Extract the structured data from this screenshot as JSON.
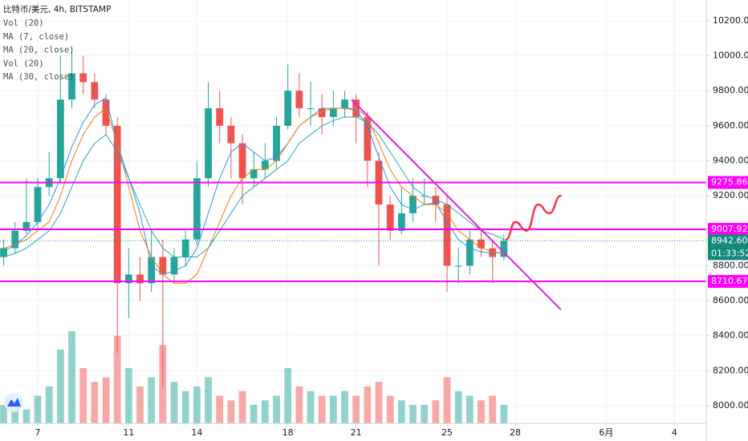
{
  "chart_data": {
    "type": "candlestick",
    "title": "比特币/美元, 4h, BITSTAMP",
    "x": [
      5.5,
      6,
      6.5,
      7,
      7.5,
      8,
      8.5,
      9,
      9.5,
      10,
      10.5,
      11,
      11.5,
      12,
      12.5,
      13,
      13.5,
      14,
      14.5,
      15,
      15.5,
      16,
      16.5,
      17,
      17.5,
      18,
      18.5,
      19,
      19.5,
      20,
      20.5,
      21,
      21.5,
      22,
      22.5,
      23,
      23.5,
      24,
      24.5,
      25,
      25.5,
      26,
      26.5,
      27,
      27.5
    ],
    "open": [
      8850,
      8900,
      9000,
      9050,
      9250,
      9300,
      9750,
      9900,
      9850,
      9750,
      9600,
      8700,
      8750,
      8700,
      8850,
      8750,
      8850,
      8950,
      9300,
      9700,
      9600,
      9500,
      9300,
      9350,
      9400,
      9600,
      9800,
      9700,
      9700,
      9650,
      9700,
      9750,
      9650,
      9400,
      9150,
      9000,
      9100,
      9200,
      9200,
      9150,
      8800,
      8800,
      8950,
      8900,
      8850
    ],
    "high": [
      8950,
      9050,
      9300,
      9300,
      9450,
      10000,
      10050,
      10000,
      9900,
      9780,
      9650,
      8900,
      8850,
      9000,
      8950,
      8900,
      9000,
      9400,
      9850,
      9800,
      9650,
      9550,
      9450,
      9500,
      9650,
      9950,
      9900,
      9850,
      9780,
      9800,
      9800,
      9780,
      9680,
      9450,
      9200,
      9250,
      9300,
      9300,
      9250,
      9200,
      8900,
      9000,
      9000,
      8950,
      8980
    ],
    "low": [
      8800,
      8870,
      8980,
      9000,
      9200,
      9280,
      9700,
      9780,
      9700,
      9550,
      8300,
      8500,
      8600,
      8650,
      8100,
      8700,
      8800,
      8920,
      9250,
      9500,
      9300,
      9150,
      9250,
      9300,
      9350,
      9580,
      9650,
      9600,
      9550,
      9600,
      9650,
      9500,
      9250,
      8800,
      8950,
      8980,
      9050,
      9150,
      9050,
      8650,
      8700,
      8750,
      8850,
      8700,
      8830
    ],
    "close": [
      8900,
      9000,
      9050,
      9250,
      9300,
      9750,
      9900,
      9850,
      9750,
      9600,
      8700,
      8750,
      8700,
      8850,
      8750,
      8850,
      8950,
      9300,
      9700,
      9600,
      9500,
      9300,
      9350,
      9400,
      9600,
      9800,
      9700,
      9700,
      9650,
      9700,
      9750,
      9650,
      9400,
      9150,
      9000,
      9100,
      9200,
      9200,
      9150,
      8800,
      8800,
      8950,
      8900,
      8850,
      8942.6
    ],
    "up_color": "#26a69a",
    "down_color": "#ef5350",
    "series": [
      {
        "name": "Vol (20)",
        "values": [
          20,
          25,
          15,
          30,
          40,
          80,
          100,
          60,
          45,
          50,
          95,
          60,
          40,
          50,
          85,
          45,
          35,
          40,
          50,
          30,
          25,
          35,
          20,
          25,
          30,
          60,
          40,
          35,
          30,
          30,
          35,
          30,
          40,
          45,
          30,
          25,
          20,
          20,
          25,
          50,
          35,
          30,
          25,
          30,
          20
        ]
      },
      {
        "name": "MA (7, close)",
        "color": "#2196f3",
        "values": [
          8880,
          8920,
          8970,
          9050,
          9150,
          9300,
          9480,
          9620,
          9720,
          9760,
          9500,
          9300,
          9100,
          8800,
          8750,
          8770,
          8800,
          8900,
          9100,
          9300,
          9450,
          9500,
          9450,
          9400,
          9420,
          9500,
          9600,
          9650,
          9700,
          9700,
          9700,
          9690,
          9600,
          9420,
          9250,
          9150,
          9120,
          9150,
          9160,
          9050,
          8950,
          8900,
          8880,
          8870,
          8880
        ]
      },
      {
        "name": "MA (20, close)",
        "color": "#f57c00",
        "values": [
          8900,
          8920,
          8950,
          9000,
          9050,
          9200,
          9400,
          9550,
          9650,
          9700,
          9500,
          9250,
          9000,
          8850,
          8750,
          8700,
          8700,
          8750,
          8900,
          9050,
          9200,
          9300,
          9350,
          9350,
          9400,
          9500,
          9600,
          9650,
          9680,
          9700,
          9700,
          9700,
          9650,
          9500,
          9350,
          9250,
          9200,
          9150,
          9150,
          9100,
          9000,
          8950,
          8900,
          8880,
          8870
        ]
      },
      {
        "name": "Vol (20)"
      },
      {
        "name": "MA (30, close)",
        "color": "#26a6b5",
        "values": [
          8850,
          8870,
          8900,
          8950,
          9000,
          9100,
          9250,
          9400,
          9500,
          9550,
          9450,
          9300,
          9150,
          9000,
          8900,
          8850,
          8850,
          8850,
          8900,
          9000,
          9100,
          9200,
          9250,
          9300,
          9350,
          9400,
          9500,
          9550,
          9600,
          9630,
          9650,
          9650,
          9620,
          9550,
          9450,
          9350,
          9250,
          9200,
          9180,
          9150,
          9100,
          9050,
          9000,
          8980,
          8950
        ]
      }
    ],
    "xlim": [
      5.34,
      36.4
    ],
    "ylim": [
      7899,
      10319
    ],
    "xticks": [
      7,
      11,
      14,
      18,
      21,
      25,
      28,
      {
        "value": 32,
        "label": "6月"
      },
      {
        "value": 35,
        "label": "4"
      }
    ],
    "yticks": [
      {
        "value": 8000,
        "label": "8000.00"
      },
      {
        "value": 8200,
        "label": "8200.00"
      },
      {
        "value": 8400,
        "label": "8400.00"
      },
      {
        "value": 8600,
        "label": "8600.00"
      },
      {
        "value": 8800,
        "label": "8800.00"
      },
      {
        "value": 9000,
        "label": "9000.00"
      },
      {
        "value": 9200,
        "label": "9200.00"
      },
      {
        "value": 9400,
        "label": "9400.00"
      },
      {
        "value": 9600,
        "label": "9600.00"
      },
      {
        "value": 9800,
        "label": "9800.00"
      },
      {
        "value": 10000,
        "label": "10000.00"
      },
      {
        "value": 10200,
        "label": "10200.00"
      }
    ],
    "grid": true,
    "levels": [
      9275.86,
      9007.92,
      8710.67
    ],
    "level_color": "#ff00ff",
    "last_price": {
      "value": 8942.6,
      "label": "8942.60"
    },
    "countdown": "01:33:52",
    "last_price_color": "#138a7d",
    "trend_line": {
      "color": "#e41ee6",
      "points": [
        [
          20.8,
          9750
        ],
        [
          30,
          8550
        ]
      ]
    },
    "drawing": {
      "color": "#f23645",
      "points": [
        [
          27.6,
          8950
        ],
        [
          28,
          9050
        ],
        [
          28.5,
          9000
        ],
        [
          29,
          9150
        ],
        [
          29.5,
          9100
        ],
        [
          30,
          9200
        ]
      ]
    }
  }
}
